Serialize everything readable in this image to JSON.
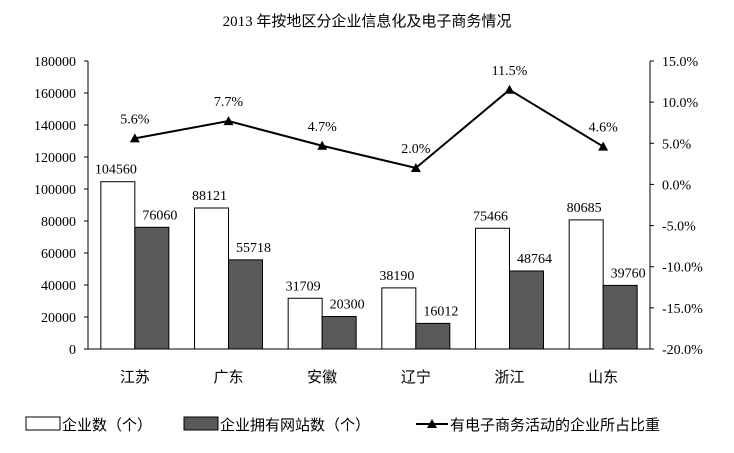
{
  "chart_data": {
    "type": "bar",
    "title": "2013 年按地区分企业信息化及电子商务情况",
    "categories": [
      "江苏",
      "广东",
      "安徽",
      "辽宁",
      "浙江",
      "山东"
    ],
    "series": [
      {
        "name": "企业数（个）",
        "kind": "bar",
        "axis": "left",
        "color": "#ffffff",
        "values": [
          104560,
          88121,
          31709,
          38190,
          75466,
          80685
        ],
        "labels": [
          "104560",
          "88121",
          "31709",
          "38190",
          "75466",
          "80685"
        ]
      },
      {
        "name": "企业拥有网站数（个）",
        "kind": "bar",
        "axis": "left",
        "color": "#595959",
        "values": [
          76060,
          55718,
          20300,
          16012,
          48764,
          39760
        ],
        "labels": [
          "76060",
          "55718",
          "20300",
          "16012",
          "48764",
          "39760"
        ]
      },
      {
        "name": "有电子商务活动的企业所占比重",
        "kind": "line",
        "axis": "right",
        "color": "#000000",
        "values": [
          5.6,
          7.7,
          4.7,
          2.0,
          11.5,
          4.6
        ],
        "labels": [
          "5.6%",
          "7.7%",
          "4.7%",
          "2.0%",
          "11.5%",
          "4.6%"
        ]
      }
    ],
    "y_left": {
      "range": [
        0,
        180000
      ],
      "ticks": [
        "0",
        "20000",
        "40000",
        "60000",
        "80000",
        "100000",
        "120000",
        "140000",
        "160000",
        "180000"
      ]
    },
    "y_right": {
      "range": [
        -20,
        15
      ],
      "ticks": [
        "-20.0%",
        "-15.0%",
        "-10.0%",
        "-5.0%",
        "0.0%",
        "5.0%",
        "10.0%",
        "15.0%"
      ]
    },
    "grid": false,
    "legend": "bottom"
  }
}
